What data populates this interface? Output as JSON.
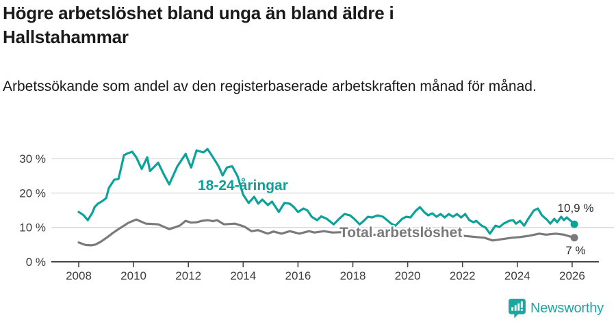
{
  "header": {
    "title": "Högre arbetslöshet bland unga än bland äldre i Hallstahammar",
    "subtitle": "Arbetssökande som andel av den registerbaserade arbetskraften månad för månad."
  },
  "chart_data": {
    "type": "line",
    "title": "Högre arbetslöshet bland unga än bland äldre i Hallstahammar",
    "unit": "%",
    "grid": "horizontal",
    "legend_position": "inline-labels",
    "x_axis": {
      "ticks": [
        2008,
        2010,
        2012,
        2014,
        2016,
        2018,
        2020,
        2022,
        2024,
        2026
      ],
      "tick_labels": [
        "2008",
        "2010",
        "2012",
        "2014",
        "2016",
        "2018",
        "2020",
        "2022",
        "2024",
        "2026"
      ],
      "range": [
        2007.9,
        2026.6
      ]
    },
    "y_axis": {
      "ticks": [
        0,
        10,
        20,
        30
      ],
      "tick_labels": [
        "0 %",
        "10 %",
        "20 %",
        "30 %"
      ],
      "range": [
        0,
        34
      ]
    },
    "series": [
      {
        "name": "18-24-åringar",
        "color": "#0ca29a",
        "end_label": "10,9 %",
        "last_value": 10.9,
        "points": [
          [
            2008.0,
            14.5
          ],
          [
            2008.17,
            13.6
          ],
          [
            2008.33,
            12.1
          ],
          [
            2008.5,
            14.3
          ],
          [
            2008.58,
            15.9
          ],
          [
            2008.7,
            16.9
          ],
          [
            2008.85,
            17.6
          ],
          [
            2009.0,
            18.5
          ],
          [
            2009.1,
            21.5
          ],
          [
            2009.3,
            23.9
          ],
          [
            2009.45,
            24.1
          ],
          [
            2009.55,
            27.5
          ],
          [
            2009.65,
            31.0
          ],
          [
            2009.8,
            31.6
          ],
          [
            2009.95,
            32.0
          ],
          [
            2010.1,
            30.4
          ],
          [
            2010.3,
            27.0
          ],
          [
            2010.5,
            30.4
          ],
          [
            2010.6,
            26.4
          ],
          [
            2010.75,
            27.6
          ],
          [
            2010.9,
            28.8
          ],
          [
            2011.1,
            25.5
          ],
          [
            2011.3,
            22.5
          ],
          [
            2011.6,
            27.8
          ],
          [
            2011.9,
            31.4
          ],
          [
            2012.1,
            27.4
          ],
          [
            2012.3,
            32.4
          ],
          [
            2012.55,
            31.8
          ],
          [
            2012.7,
            32.8
          ],
          [
            2012.9,
            30.4
          ],
          [
            2013.1,
            27.8
          ],
          [
            2013.25,
            25.1
          ],
          [
            2013.4,
            27.4
          ],
          [
            2013.6,
            27.8
          ],
          [
            2013.8,
            24.8
          ],
          [
            2014.0,
            19.5
          ],
          [
            2014.2,
            17.1
          ],
          [
            2014.4,
            18.9
          ],
          [
            2014.55,
            16.9
          ],
          [
            2014.7,
            18.1
          ],
          [
            2014.9,
            16.5
          ],
          [
            2015.05,
            17.5
          ],
          [
            2015.3,
            14.5
          ],
          [
            2015.5,
            17.1
          ],
          [
            2015.7,
            16.9
          ],
          [
            2015.85,
            15.9
          ],
          [
            2016.0,
            14.5
          ],
          [
            2016.2,
            15.5
          ],
          [
            2016.35,
            14.9
          ],
          [
            2016.5,
            13.1
          ],
          [
            2016.7,
            12.1
          ],
          [
            2016.85,
            13.2
          ],
          [
            2017.05,
            12.5
          ],
          [
            2017.3,
            10.9
          ],
          [
            2017.5,
            12.5
          ],
          [
            2017.7,
            13.9
          ],
          [
            2017.9,
            13.5
          ],
          [
            2018.05,
            12.5
          ],
          [
            2018.25,
            10.9
          ],
          [
            2018.4,
            11.9
          ],
          [
            2018.55,
            13.1
          ],
          [
            2018.7,
            12.9
          ],
          [
            2018.9,
            13.5
          ],
          [
            2019.1,
            13.1
          ],
          [
            2019.4,
            11.1
          ],
          [
            2019.55,
            10.5
          ],
          [
            2019.8,
            12.5
          ],
          [
            2019.95,
            13.1
          ],
          [
            2020.1,
            12.9
          ],
          [
            2020.3,
            14.9
          ],
          [
            2020.45,
            15.9
          ],
          [
            2020.6,
            14.5
          ],
          [
            2020.75,
            13.5
          ],
          [
            2020.9,
            14.1
          ],
          [
            2021.05,
            13.1
          ],
          [
            2021.2,
            13.9
          ],
          [
            2021.35,
            12.9
          ],
          [
            2021.5,
            13.9
          ],
          [
            2021.65,
            13.1
          ],
          [
            2021.8,
            13.9
          ],
          [
            2021.95,
            12.9
          ],
          [
            2022.1,
            13.9
          ],
          [
            2022.25,
            12.1
          ],
          [
            2022.4,
            11.5
          ],
          [
            2022.5,
            11.9
          ],
          [
            2022.7,
            10.5
          ],
          [
            2022.85,
            9.9
          ],
          [
            2023.0,
            8.2
          ],
          [
            2023.2,
            10.5
          ],
          [
            2023.35,
            10.1
          ],
          [
            2023.5,
            11.1
          ],
          [
            2023.7,
            11.9
          ],
          [
            2023.85,
            12.1
          ],
          [
            2023.95,
            11.1
          ],
          [
            2024.1,
            11.9
          ],
          [
            2024.25,
            10.5
          ],
          [
            2024.4,
            12.5
          ],
          [
            2024.6,
            14.9
          ],
          [
            2024.75,
            15.5
          ],
          [
            2024.9,
            13.5
          ],
          [
            2025.1,
            12.1
          ],
          [
            2025.2,
            11.1
          ],
          [
            2025.35,
            12.5
          ],
          [
            2025.45,
            11.5
          ],
          [
            2025.6,
            13.1
          ],
          [
            2025.7,
            12.1
          ],
          [
            2025.8,
            12.9
          ],
          [
            2025.95,
            11.9
          ],
          [
            2026.08,
            10.9
          ]
        ]
      },
      {
        "name": "Total arbetslöshet",
        "color": "#7a7a7a",
        "end_label": "7 %",
        "last_value": 7.0,
        "points": [
          [
            2008.0,
            5.6
          ],
          [
            2008.25,
            4.9
          ],
          [
            2008.45,
            4.8
          ],
          [
            2008.6,
            5.0
          ],
          [
            2008.8,
            5.8
          ],
          [
            2009.05,
            7.2
          ],
          [
            2009.25,
            8.4
          ],
          [
            2009.45,
            9.5
          ],
          [
            2009.65,
            10.5
          ],
          [
            2009.8,
            11.3
          ],
          [
            2010.1,
            12.3
          ],
          [
            2010.45,
            11.1
          ],
          [
            2010.7,
            11.0
          ],
          [
            2010.9,
            10.9
          ],
          [
            2011.1,
            10.2
          ],
          [
            2011.3,
            9.5
          ],
          [
            2011.5,
            10.0
          ],
          [
            2011.7,
            10.6
          ],
          [
            2011.9,
            11.9
          ],
          [
            2012.1,
            11.4
          ],
          [
            2012.3,
            11.5
          ],
          [
            2012.5,
            11.9
          ],
          [
            2012.7,
            12.1
          ],
          [
            2012.9,
            11.8
          ],
          [
            2013.05,
            12.1
          ],
          [
            2013.3,
            10.9
          ],
          [
            2013.5,
            11.0
          ],
          [
            2013.7,
            11.1
          ],
          [
            2013.9,
            10.6
          ],
          [
            2014.05,
            10.2
          ],
          [
            2014.3,
            8.9
          ],
          [
            2014.55,
            9.2
          ],
          [
            2014.75,
            8.6
          ],
          [
            2014.9,
            8.2
          ],
          [
            2015.1,
            8.8
          ],
          [
            2015.4,
            8.2
          ],
          [
            2015.7,
            8.9
          ],
          [
            2016.05,
            8.2
          ],
          [
            2016.4,
            8.9
          ],
          [
            2016.6,
            8.5
          ],
          [
            2016.95,
            8.9
          ],
          [
            2017.25,
            8.5
          ],
          [
            2017.6,
            8.6
          ],
          [
            2018.0,
            8.2
          ],
          [
            2018.5,
            8.0
          ],
          [
            2019.0,
            7.8
          ],
          [
            2019.5,
            7.6
          ],
          [
            2020.0,
            7.9
          ],
          [
            2020.4,
            8.8
          ],
          [
            2020.8,
            8.6
          ],
          [
            2021.2,
            8.3
          ],
          [
            2021.6,
            7.9
          ],
          [
            2022.0,
            7.6
          ],
          [
            2022.5,
            7.2
          ],
          [
            2022.8,
            7.0
          ],
          [
            2023.1,
            6.2
          ],
          [
            2023.45,
            6.6
          ],
          [
            2023.8,
            7.0
          ],
          [
            2024.1,
            7.2
          ],
          [
            2024.45,
            7.6
          ],
          [
            2024.8,
            8.2
          ],
          [
            2025.05,
            7.9
          ],
          [
            2025.4,
            8.2
          ],
          [
            2025.7,
            7.9
          ],
          [
            2026.08,
            7.0
          ]
        ]
      }
    ]
  },
  "colors": {
    "accent_teal": "#0ca29a",
    "series_gray": "#7a7a7a",
    "gridline": "#d9d9d9",
    "axis": "#454545",
    "text_dark": "#1a1a1a",
    "brand_teal": "#1ba6a0"
  },
  "footer": {
    "brand": "Newsworthy"
  }
}
